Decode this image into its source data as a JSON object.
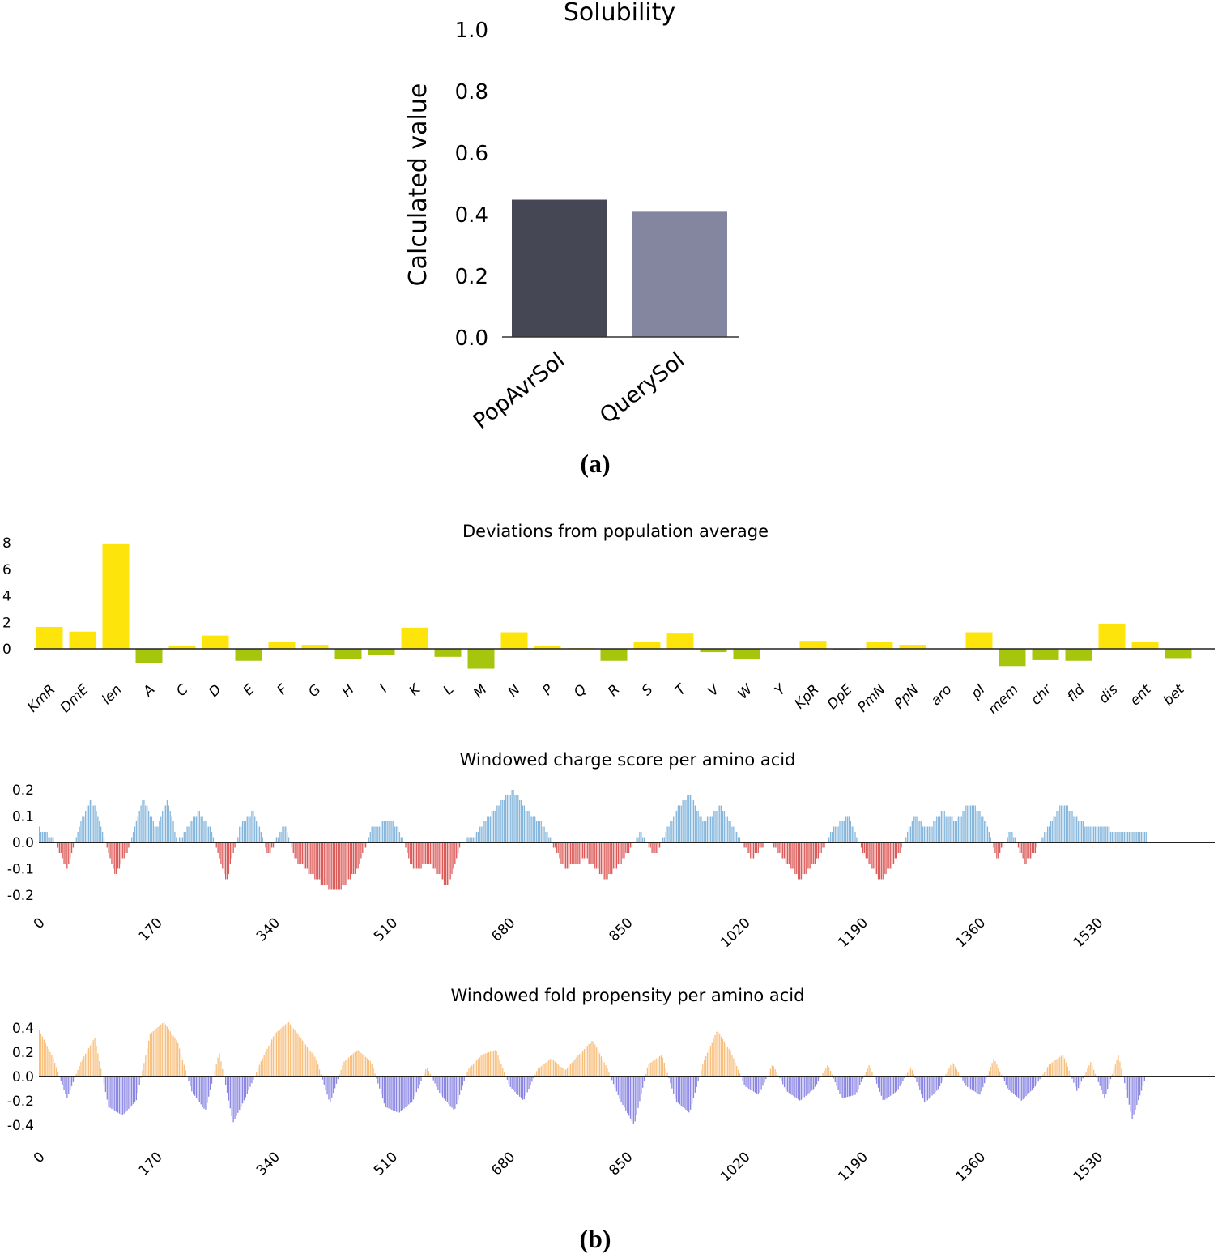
{
  "panel_a_label": "(a)",
  "panel_b_label": "(b)",
  "chart_data": [
    {
      "type": "bar",
      "title": "Solubility",
      "ylabel": "Calculated value",
      "xlabel": "",
      "ylim": [
        0,
        1.0
      ],
      "yticks": [
        "0.0",
        "0.2",
        "0.4",
        "0.6",
        "0.8",
        "1.0"
      ],
      "categories": [
        "PopAvrSol",
        "QuerySol"
      ],
      "values": [
        0.446,
        0.407
      ],
      "colors": [
        "#464754",
        "#84859f"
      ],
      "grid": false
    },
    {
      "type": "bar",
      "title": "Deviations from population average",
      "ylim": [
        -2,
        8
      ],
      "yticks": [
        "0",
        "2",
        "4",
        "6",
        "8"
      ],
      "categories": [
        "KmR",
        "DmE",
        "len",
        "A",
        "C",
        "D",
        "E",
        "F",
        "G",
        "H",
        "I",
        "K",
        "L",
        "M",
        "N",
        "P",
        "Q",
        "R",
        "S",
        "T",
        "V",
        "W",
        "Y",
        "KpR",
        "DpE",
        "PmN",
        "PpN",
        "aro",
        "pI",
        "mem",
        "chr",
        "fld",
        "dis",
        "ent",
        "bet"
      ],
      "values": [
        1.65,
        1.3,
        7.95,
        -1.05,
        0.25,
        1.0,
        -0.9,
        0.55,
        0.3,
        -0.75,
        -0.45,
        1.6,
        -0.6,
        -1.5,
        1.25,
        0.22,
        0.05,
        -0.9,
        0.55,
        1.15,
        -0.25,
        -0.8,
        0.0,
        0.6,
        -0.1,
        0.5,
        0.3,
        0.0,
        1.25,
        -1.3,
        -0.85,
        -0.9,
        1.9,
        0.55,
        -0.7
      ],
      "positive_color": "#fde50c",
      "negative_color": "#a6c60e"
    },
    {
      "type": "bar",
      "title": "Windowed charge score per amino acid",
      "ylim": [
        -0.24,
        0.24
      ],
      "yticks": [
        "0.2",
        "0.1",
        "0.0",
        "-0.1",
        "-0.2"
      ],
      "xticks": [
        "0",
        "170",
        "340",
        "510",
        "680",
        "850",
        "1020",
        "1190",
        "1360",
        "1530"
      ],
      "xlim": [
        0,
        1700
      ],
      "positive_color": "#85b6dc",
      "negative_color": "#dc5a58",
      "profile": [
        [
          0,
          0.05
        ],
        [
          20,
          0.02
        ],
        [
          40,
          -0.1
        ],
        [
          60,
          0.08
        ],
        [
          75,
          0.17
        ],
        [
          90,
          0.06
        ],
        [
          110,
          -0.12
        ],
        [
          130,
          -0.02
        ],
        [
          150,
          0.17
        ],
        [
          170,
          0.05
        ],
        [
          185,
          0.17
        ],
        [
          200,
          0.0
        ],
        [
          230,
          0.12
        ],
        [
          250,
          0.04
        ],
        [
          270,
          -0.15
        ],
        [
          290,
          0.06
        ],
        [
          310,
          0.12
        ],
        [
          330,
          -0.05
        ],
        [
          355,
          0.07
        ],
        [
          370,
          -0.06
        ],
        [
          400,
          -0.14
        ],
        [
          430,
          -0.19
        ],
        [
          460,
          -0.1
        ],
        [
          480,
          0.05
        ],
        [
          505,
          0.09
        ],
        [
          520,
          0.05
        ],
        [
          540,
          -0.1
        ],
        [
          565,
          -0.08
        ],
        [
          590,
          -0.17
        ],
        [
          610,
          0.0
        ],
        [
          630,
          0.03
        ],
        [
          655,
          0.12
        ],
        [
          685,
          0.2
        ],
        [
          705,
          0.12
        ],
        [
          730,
          0.06
        ],
        [
          760,
          -0.1
        ],
        [
          790,
          -0.06
        ],
        [
          820,
          -0.14
        ],
        [
          840,
          -0.08
        ],
        [
          870,
          0.04
        ],
        [
          890,
          -0.05
        ],
        [
          920,
          0.12
        ],
        [
          940,
          0.18
        ],
        [
          960,
          0.08
        ],
        [
          985,
          0.14
        ],
        [
          1010,
          0.03
        ],
        [
          1030,
          -0.06
        ],
        [
          1055,
          0.01
        ],
        [
          1075,
          -0.06
        ],
        [
          1100,
          -0.14
        ],
        [
          1125,
          -0.06
        ],
        [
          1150,
          0.06
        ],
        [
          1170,
          0.1
        ],
        [
          1190,
          -0.03
        ],
        [
          1215,
          -0.15
        ],
        [
          1240,
          -0.06
        ],
        [
          1265,
          0.1
        ],
        [
          1285,
          0.05
        ],
        [
          1305,
          0.12
        ],
        [
          1325,
          0.08
        ],
        [
          1345,
          0.15
        ],
        [
          1365,
          0.1
        ],
        [
          1385,
          -0.06
        ],
        [
          1405,
          0.05
        ],
        [
          1425,
          -0.08
        ],
        [
          1440,
          -0.03
        ],
        [
          1460,
          0.07
        ],
        [
          1480,
          0.15
        ],
        [
          1500,
          0.09
        ],
        [
          1520,
          0.05
        ],
        [
          1540,
          0.06
        ],
        [
          1560,
          0.03
        ],
        [
          1580,
          0.05
        ],
        [
          1600,
          0.04
        ]
      ]
    },
    {
      "type": "bar",
      "title": "Windowed fold propensity per amino acid",
      "ylim": [
        -0.5,
        0.5
      ],
      "yticks": [
        "0.4",
        "0.2",
        "0.0",
        "-0.2",
        "-0.4"
      ],
      "xticks": [
        "0",
        "170",
        "340",
        "510",
        "680",
        "850",
        "1020",
        "1190",
        "1360",
        "1530"
      ],
      "xlim": [
        0,
        1700
      ],
      "positive_color": "#f8c07f",
      "negative_color": "#8b86e4",
      "profile": [
        [
          0,
          0.38
        ],
        [
          20,
          0.15
        ],
        [
          40,
          -0.18
        ],
        [
          60,
          0.12
        ],
        [
          80,
          0.32
        ],
        [
          100,
          -0.25
        ],
        [
          120,
          -0.32
        ],
        [
          140,
          -0.2
        ],
        [
          160,
          0.35
        ],
        [
          180,
          0.45
        ],
        [
          200,
          0.28
        ],
        [
          220,
          -0.12
        ],
        [
          240,
          -0.28
        ],
        [
          260,
          0.2
        ],
        [
          280,
          -0.38
        ],
        [
          300,
          -0.15
        ],
        [
          320,
          0.12
        ],
        [
          340,
          0.35
        ],
        [
          360,
          0.45
        ],
        [
          380,
          0.3
        ],
        [
          400,
          0.15
        ],
        [
          420,
          -0.22
        ],
        [
          440,
          0.12
        ],
        [
          460,
          0.22
        ],
        [
          480,
          0.12
        ],
        [
          500,
          -0.25
        ],
        [
          520,
          -0.3
        ],
        [
          540,
          -0.2
        ],
        [
          560,
          0.08
        ],
        [
          580,
          -0.15
        ],
        [
          600,
          -0.28
        ],
        [
          620,
          0.06
        ],
        [
          640,
          0.18
        ],
        [
          660,
          0.22
        ],
        [
          680,
          -0.08
        ],
        [
          700,
          -0.2
        ],
        [
          720,
          0.06
        ],
        [
          740,
          0.15
        ],
        [
          760,
          0.05
        ],
        [
          780,
          0.18
        ],
        [
          800,
          0.3
        ],
        [
          820,
          0.08
        ],
        [
          840,
          -0.2
        ],
        [
          860,
          -0.4
        ],
        [
          880,
          0.1
        ],
        [
          900,
          0.18
        ],
        [
          920,
          -0.2
        ],
        [
          940,
          -0.3
        ],
        [
          960,
          0.12
        ],
        [
          980,
          0.38
        ],
        [
          1000,
          0.2
        ],
        [
          1020,
          -0.08
        ],
        [
          1040,
          -0.15
        ],
        [
          1060,
          0.1
        ],
        [
          1080,
          -0.12
        ],
        [
          1100,
          -0.2
        ],
        [
          1120,
          -0.1
        ],
        [
          1140,
          0.1
        ],
        [
          1160,
          -0.18
        ],
        [
          1180,
          -0.15
        ],
        [
          1200,
          0.1
        ],
        [
          1220,
          -0.2
        ],
        [
          1240,
          -0.12
        ],
        [
          1260,
          0.08
        ],
        [
          1280,
          -0.22
        ],
        [
          1300,
          -0.1
        ],
        [
          1320,
          0.12
        ],
        [
          1340,
          -0.08
        ],
        [
          1360,
          -0.15
        ],
        [
          1380,
          0.15
        ],
        [
          1400,
          -0.1
        ],
        [
          1420,
          -0.2
        ],
        [
          1440,
          -0.08
        ],
        [
          1460,
          0.1
        ],
        [
          1480,
          0.18
        ],
        [
          1500,
          -0.12
        ],
        [
          1520,
          0.12
        ],
        [
          1540,
          -0.18
        ],
        [
          1560,
          0.18
        ],
        [
          1580,
          -0.35
        ],
        [
          1600,
          0.0
        ]
      ]
    }
  ]
}
